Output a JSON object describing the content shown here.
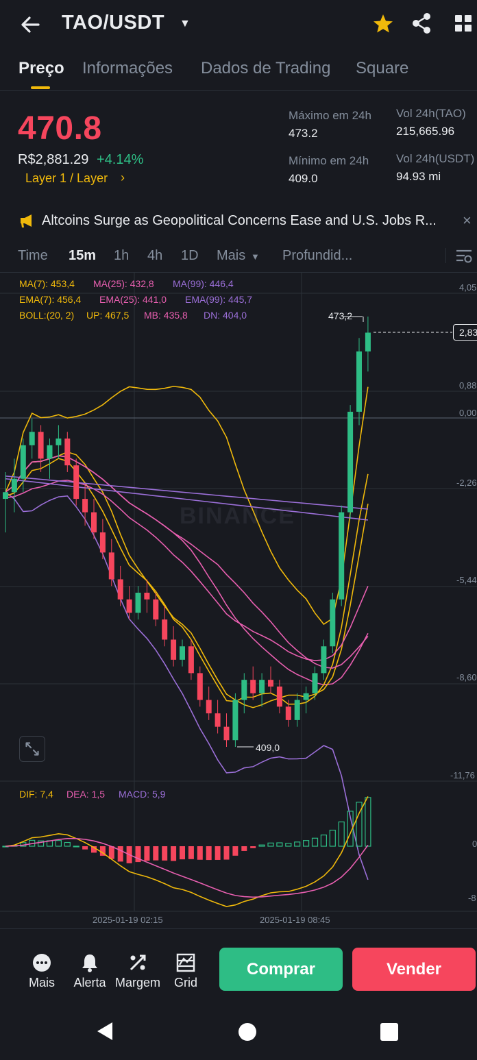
{
  "header": {
    "pair": "TAO/USDT",
    "icons": [
      "back-arrow-icon",
      "caret-down-icon",
      "star-icon",
      "share-icon",
      "grid-menu-icon"
    ]
  },
  "tabs": [
    {
      "label": "Preço",
      "active": true
    },
    {
      "label": "Informações",
      "active": false
    },
    {
      "label": "Dados de Trading",
      "active": false
    },
    {
      "label": "Square",
      "active": false
    }
  ],
  "price": {
    "last": "470.8",
    "fiat": "R$2,881.29",
    "change": "+4.14%",
    "tags": "Layer 1 / Layer",
    "tags_arrow": "›",
    "high_label": "Máximo em 24h",
    "high_value": "473.2",
    "low_label": "Mínimo em 24h",
    "low_value": "409.0",
    "vol_base_label": "Vol 24h(TAO)",
    "vol_base_value": "215,665.96",
    "vol_quote_label": "Vol 24h(USDT)",
    "vol_quote_value": "94.93 mi"
  },
  "news": {
    "text": "Altcoins Surge as Geopolitical Concerns Ease and U.S. Jobs R...",
    "close": "×"
  },
  "intervals": [
    {
      "label": "Time",
      "active": false
    },
    {
      "label": "15m",
      "active": true
    },
    {
      "label": "1h",
      "active": false
    },
    {
      "label": "4h",
      "active": false
    },
    {
      "label": "1D",
      "active": false
    },
    {
      "label": "Mais",
      "active": false
    },
    {
      "label": "Profundid...",
      "active": false
    }
  ],
  "indicators": {
    "ma7": "MA(7): 453,4",
    "ma25": "MA(25): 432,8",
    "ma99": "MA(99): 446,4",
    "ema7": "EMA(7): 456,4",
    "ema25": "EMA(25): 441,0",
    "ema99": "EMA(99): 445,7",
    "boll": "BOLL:(20, 2)",
    "boll_up": "UP: 467,5",
    "boll_mb": "MB: 435,8",
    "boll_dn": "DN: 404,0",
    "dif": "DIF: 7,4",
    "dea": "DEA: 1,5",
    "macd": "MACD: 5,9"
  },
  "chart": {
    "watermark": "BINANCE",
    "high_marker": "473,2",
    "low_marker": "409,0",
    "current_tag": "2,83",
    "right_axis": [
      "4,05",
      "0,88",
      "0,00",
      "-2,26",
      "-5,44",
      "-8,60",
      "-11,76"
    ],
    "macd_axis": [
      "0",
      "-8"
    ],
    "time_labels": [
      "2025-01-19 02:15",
      "2025-01-19 08:45"
    ],
    "colors": {
      "up": "#2ebd85",
      "down": "#f6465d",
      "yellow": "#f0b90b",
      "pink": "#e85fb0",
      "purple": "#9b6fd8"
    }
  },
  "chart_data": {
    "type": "candlestick",
    "title": "TAO/USDT 15m",
    "high_24h": 473.2,
    "low_24h": 409.0,
    "ohlc": [
      [
        446,
        450,
        441,
        447
      ],
      [
        447,
        452,
        444,
        449
      ],
      [
        449,
        455,
        447,
        454
      ],
      [
        454,
        458,
        452,
        456
      ],
      [
        456,
        457,
        450,
        452
      ],
      [
        452,
        455,
        449,
        454
      ],
      [
        454,
        457,
        452,
        455
      ],
      [
        455,
        456,
        450,
        451
      ],
      [
        451,
        452,
        445,
        446
      ],
      [
        446,
        448,
        442,
        444
      ],
      [
        444,
        446,
        440,
        441
      ],
      [
        441,
        443,
        437,
        438
      ],
      [
        438,
        440,
        433,
        434
      ],
      [
        434,
        436,
        430,
        431
      ],
      [
        431,
        433,
        428,
        429
      ],
      [
        429,
        433,
        428,
        432
      ],
      [
        432,
        434,
        429,
        431
      ],
      [
        431,
        432,
        427,
        428
      ],
      [
        428,
        430,
        424,
        425
      ],
      [
        425,
        427,
        421,
        422
      ],
      [
        422,
        425,
        421,
        424
      ],
      [
        424,
        425,
        419,
        420
      ],
      [
        420,
        421,
        415,
        416
      ],
      [
        416,
        418,
        413,
        414
      ],
      [
        414,
        416,
        411,
        412
      ],
      [
        412,
        414,
        409,
        410
      ],
      [
        410,
        417,
        409,
        416
      ],
      [
        416,
        420,
        414,
        419
      ],
      [
        419,
        421,
        416,
        417
      ],
      [
        417,
        420,
        415,
        419
      ],
      [
        419,
        421,
        417,
        418
      ],
      [
        418,
        419,
        414,
        415
      ],
      [
        415,
        416,
        412,
        413
      ],
      [
        413,
        417,
        412,
        416
      ],
      [
        416,
        418,
        414,
        417
      ],
      [
        417,
        421,
        416,
        420
      ],
      [
        420,
        425,
        419,
        424
      ],
      [
        424,
        432,
        423,
        431
      ],
      [
        431,
        445,
        430,
        444
      ],
      [
        444,
        460,
        443,
        459
      ],
      [
        459,
        470,
        457,
        468
      ],
      [
        468,
        473.2,
        465,
        470.8
      ]
    ],
    "macd": {
      "dif": 7.4,
      "dea": 1.5,
      "hist": 5.9
    },
    "time_axis": [
      "2025-01-19 02:15",
      "2025-01-19 08:45"
    ]
  },
  "bottom": {
    "more": "Mais",
    "alert": "Alerta",
    "margin": "Margem",
    "grid": "Grid",
    "buy": "Comprar",
    "sell": "Vender"
  }
}
